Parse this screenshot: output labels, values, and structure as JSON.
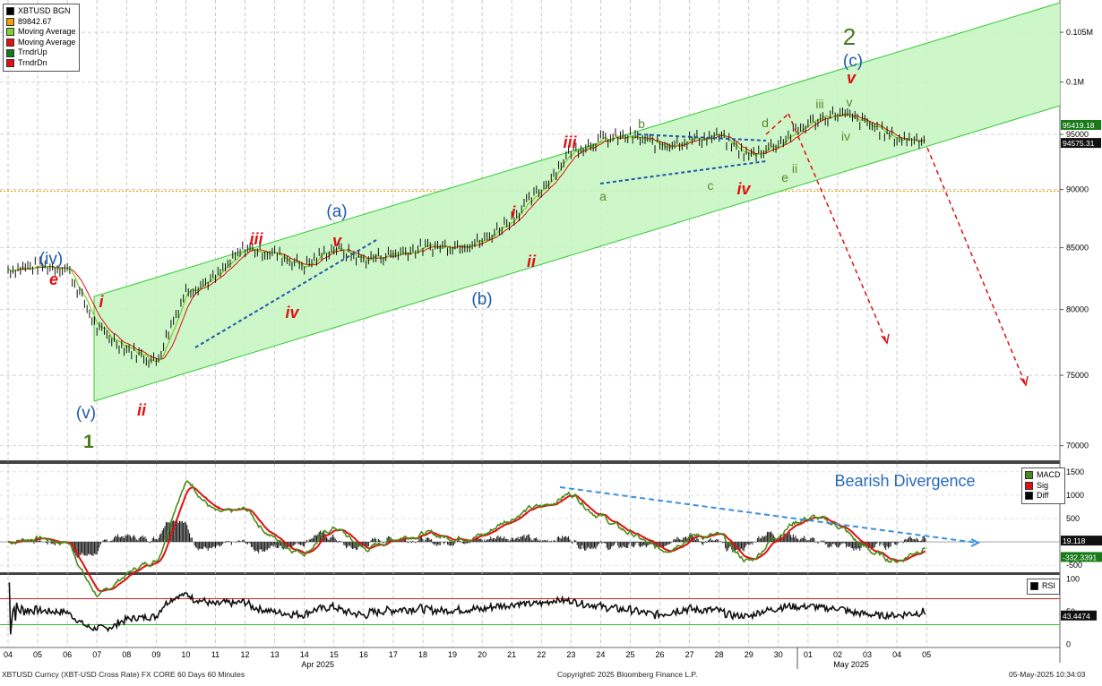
{
  "main_legend": [
    {
      "label": "XBTUSD BGN",
      "color": "#000000"
    },
    {
      "label": "89842.67",
      "color": "#f0a000"
    },
    {
      "label": "Moving Average",
      "color": "#7fd12a"
    },
    {
      "label": "Moving Average",
      "color": "#e01010"
    },
    {
      "label": "TrndrUp",
      "color": "#1a7a1a"
    },
    {
      "label": "TrndrDn",
      "color": "#e01010"
    }
  ],
  "macd_legend": [
    {
      "label": "MACD",
      "color": "#4a8a1a"
    },
    {
      "label": "Sig",
      "color": "#e01010"
    },
    {
      "label": "Diff",
      "color": "#000000"
    }
  ],
  "rsi_legend": [
    {
      "label": "RSI",
      "color": "#000000"
    }
  ],
  "footer": {
    "left": "XBTUSD Curncy (XBT-USD Cross Rate) FX CORE 60 Days 60 Minutes",
    "center": "Copyright© 2025 Bloomberg Finance L.P.",
    "right": "05-May-2025 10:34:03"
  },
  "annotations": {
    "divergence": "Bearish Divergence",
    "wave1": "1",
    "wave2": "2",
    "iv_paren": "(iv)",
    "v_paren": "(v)",
    "a_paren": "(a)",
    "b_paren": "(b)",
    "c_paren": "(c)",
    "e_red": "e",
    "i_red_1": "i",
    "ii_red_1": "ii",
    "iii_red_1": "iii",
    "iv_red_1": "iv",
    "v_red_1": "v",
    "i_red_2": "i",
    "ii_red_2": "ii",
    "iii_red_2": "iii",
    "iv_red_2": "iv",
    "v_red_2": "v",
    "a_g": "a",
    "b_g": "b",
    "c_g": "c",
    "d_g": "d",
    "e_g": "e",
    "iii_g": "iii",
    "ii_g": "ii",
    "iv_g": "iv",
    "v_g": "v"
  },
  "chart_data": [
    {
      "type": "line",
      "series": [
        {
          "name": "XBTUSD BGN",
          "x": [
            "04",
            "05",
            "06",
            "07",
            "08",
            "09",
            "10",
            "11",
            "12",
            "13",
            "14",
            "15",
            "16",
            "17",
            "18",
            "19",
            "20",
            "21",
            "22",
            "23",
            "24",
            "25",
            "26",
            "27",
            "28",
            "29",
            "30",
            "01",
            "02",
            "03",
            "04",
            "05"
          ],
          "values": [
            83200,
            83500,
            83300,
            78500,
            77000,
            76000,
            81500,
            82500,
            85000,
            84500,
            83500,
            85000,
            84000,
            84500,
            85000,
            85200,
            85500,
            87500,
            90000,
            93500,
            94500,
            94800,
            94000,
            94500,
            94800,
            93000,
            94200,
            96000,
            97000,
            96000,
            94575,
            null
          ]
        }
      ],
      "price_marker": {
        "label": "89842.67",
        "value": 89842.67
      },
      "last_values": [
        {
          "label": "95419.18",
          "value": 95419.18
        },
        {
          "label": "94575.31",
          "value": 94575.31
        }
      ],
      "y_ticks": [
        {
          "label": "0.105M",
          "value": 105000
        },
        {
          "label": "0.1M",
          "value": 100000
        },
        {
          "label": "95000",
          "value": 95000
        },
        {
          "label": "90000",
          "value": 90000
        },
        {
          "label": "85000",
          "value": 85000
        },
        {
          "label": "80000",
          "value": 80000
        },
        {
          "label": "75000",
          "value": 75000
        },
        {
          "label": "70000",
          "value": 70000
        }
      ],
      "x_ticks": [
        "04",
        "05",
        "06",
        "07",
        "08",
        "09",
        "10",
        "11",
        "12",
        "13",
        "14",
        "15",
        "16",
        "17",
        "18",
        "19",
        "20",
        "21",
        "22",
        "23",
        "24",
        "25",
        "26",
        "27",
        "28",
        "29",
        "30",
        "01",
        "02",
        "03",
        "04",
        "05"
      ],
      "x_month_labels": [
        {
          "label": "Apr 2025",
          "at": "14"
        },
        {
          "label": "May 2025",
          "at": "02"
        }
      ],
      "ylim": [
        69000,
        108000
      ],
      "grid": true
    },
    {
      "type": "line",
      "series": [
        {
          "name": "MACD"
        },
        {
          "name": "Sig"
        },
        {
          "name": "Diff"
        }
      ],
      "last_values": [
        {
          "label": "19.118",
          "value": 19.118
        },
        {
          "label": "-332.3391",
          "value": -332.3391
        }
      ],
      "y_ticks": [
        {
          "label": "1500",
          "value": 1500
        },
        {
          "label": "1000",
          "value": 1000
        },
        {
          "label": "500",
          "value": 500
        },
        {
          "label": "0",
          "value": 0
        },
        {
          "label": "-500",
          "value": -500
        }
      ],
      "ylim": [
        -650,
        1650
      ]
    },
    {
      "type": "line",
      "series": [
        {
          "name": "RSI"
        }
      ],
      "last_values": [
        {
          "label": "43.4474",
          "value": 43.4474
        }
      ],
      "y_ticks": [
        {
          "label": "100",
          "value": 100
        },
        {
          "label": "50",
          "value": 50
        },
        {
          "label": "0",
          "value": 0
        }
      ],
      "upper_band": 70,
      "lower_band": 30,
      "ylim": [
        -5,
        105
      ]
    }
  ]
}
